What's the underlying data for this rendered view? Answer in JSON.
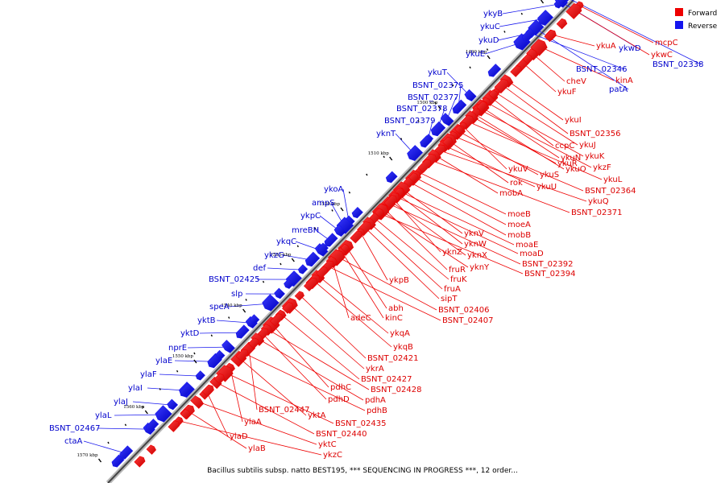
{
  "legend": {
    "forward_label": "Forward",
    "reverse_label": "Reverse",
    "forward_color": "#ee0000",
    "reverse_color": "#1515ee"
  },
  "caption": "Bacillus subtilis subsp. natto BEST195, *** SEQUENCING IN PROGRESS ***, 12 order...",
  "ticks": [
    "1480 kbp",
    "1490 kbp",
    "1500 kbp",
    "1510 kbp",
    "1520 kbp",
    "1530 kbp",
    "1540 kbp",
    "1550 kbp",
    "1560 kbp",
    "1570 kbp"
  ],
  "reverse_labels": [
    "ykyB",
    "ykuC",
    "ykuD",
    "ykuE",
    "ykuT",
    "BSNT_02375",
    "BSNT_02377",
    "BSNT_02378",
    "BSNT_02379",
    "yknT",
    "ykoA",
    "ampS",
    "ykpC",
    "mreBH",
    "ykqC",
    "ykzG",
    "def",
    "BSNT_02425",
    "slp",
    "speA",
    "yktB",
    "yktD",
    "nprE",
    "ylaE",
    "ylaF",
    "ylaI",
    "ylaJ",
    "ylaL",
    "BSNT_02467",
    "ctaA",
    "ykwD",
    "BSNT_02338",
    "BSNT_02346",
    "patA"
  ],
  "forward_labels": [
    "mcpC",
    "ykwC",
    "ykuA",
    "kinA",
    "cheV",
    "ykuF",
    "ykuI",
    "BSNT_02356",
    "ykuJ",
    "ccpC",
    "ykuK",
    "ykuN",
    "ykzF",
    "ykuO",
    "ykuR",
    "ykuL",
    "ykuV",
    "ykuS",
    "BSNT_02364",
    "rok",
    "ykuU",
    "ykuQ",
    "mobA",
    "BSNT_02371",
    "moeB",
    "moeA",
    "mobB",
    "yknV",
    "moaE",
    "yknW",
    "moaD",
    "yknZ",
    "yknX",
    "BSNT_02392",
    "fruR",
    "yknY",
    "BSNT_02394",
    "fruK",
    "fruA",
    "sipT",
    "ykpB",
    "abh",
    "kinC",
    "BSNT_02406",
    "adeC",
    "BSNT_02407",
    "ykqA",
    "ykqB",
    "BSNT_02421",
    "ykrA",
    "BSNT_02427",
    "pdhC",
    "BSNT_02428",
    "pdhD",
    "pdhA",
    "BSNT_02447",
    "pdhB",
    "yktA",
    "ylaA",
    "BSNT_02435",
    "BSNT_02440",
    "ylaD",
    "yktC",
    "ylaB",
    "ykzC"
  ]
}
